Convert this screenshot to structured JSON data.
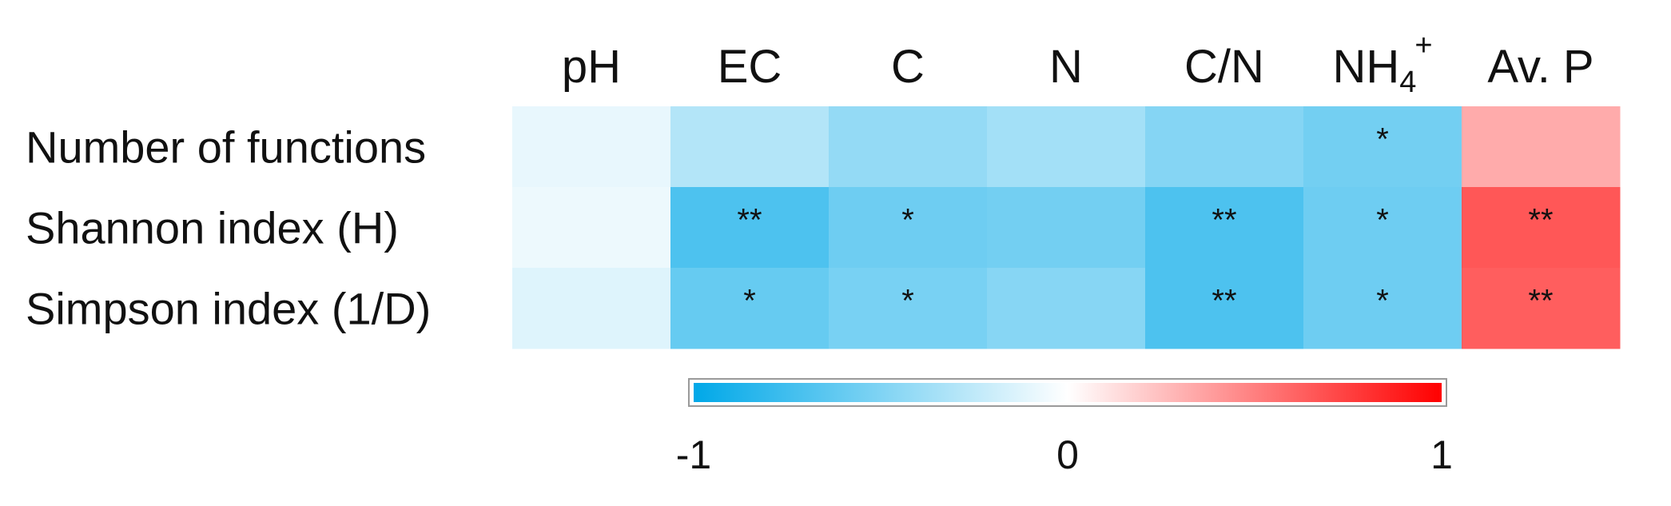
{
  "chart_data": {
    "type": "heatmap",
    "columns": [
      {
        "label": "pH",
        "sub": "",
        "sup": ""
      },
      {
        "label": "EC",
        "sub": "",
        "sup": ""
      },
      {
        "label": "C",
        "sub": "",
        "sup": ""
      },
      {
        "label": "N",
        "sub": "",
        "sup": ""
      },
      {
        "label": "C/N",
        "sub": "",
        "sup": ""
      },
      {
        "label": "NH",
        "sub": "4",
        "sup": "+"
      },
      {
        "label": "Av. P",
        "sub": "",
        "sup": ""
      }
    ],
    "rows": [
      "Number of functions",
      "Shannon index (H)",
      "Simpson index (1/D)"
    ],
    "values": [
      [
        -0.09,
        -0.3,
        -0.42,
        -0.36,
        -0.48,
        -0.55,
        0.33
      ],
      [
        -0.07,
        -0.7,
        -0.57,
        -0.55,
        -0.7,
        -0.57,
        0.66
      ],
      [
        -0.13,
        -0.6,
        -0.53,
        -0.47,
        -0.7,
        -0.57,
        0.63
      ]
    ],
    "significance": [
      [
        "",
        "",
        "",
        "",
        "",
        "*",
        ""
      ],
      [
        "",
        "**",
        "*",
        "",
        "**",
        "*",
        "**"
      ],
      [
        "",
        "*",
        "*",
        "",
        "**",
        "*",
        "**"
      ]
    ],
    "colorbar": {
      "min": -1,
      "max": 1,
      "min_color": "#00A8E8",
      "mid_color": "#FFFFFF",
      "max_color": "#FF0000",
      "ticks": [
        "-1",
        "0",
        "1"
      ]
    },
    "colors": {
      "negative": "#00A8E8",
      "neutral": "#FFFFFF",
      "positive": "#FF0000",
      "text": "#111111"
    }
  }
}
